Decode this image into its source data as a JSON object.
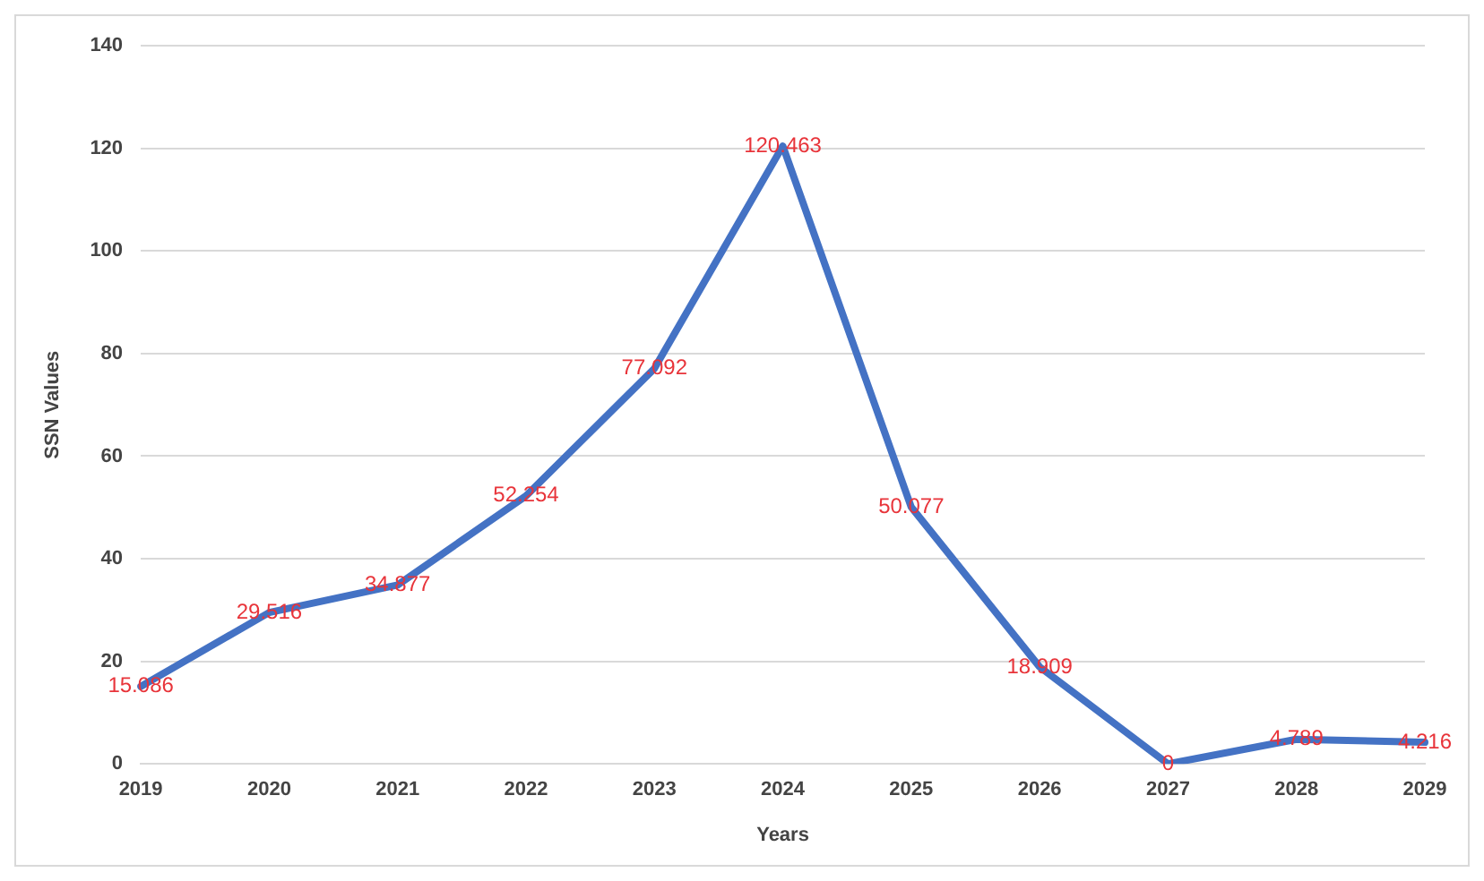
{
  "chart_data": {
    "type": "line",
    "xlabel": "Years",
    "ylabel": "SSN Values",
    "categories": [
      "2019",
      "2020",
      "2021",
      "2022",
      "2023",
      "2024",
      "2025",
      "2026",
      "2027",
      "2028",
      "2029"
    ],
    "series": [
      {
        "color": "#4472c4",
        "values": [
          15.086,
          29.516,
          34.877,
          52.254,
          77.092,
          120.463,
          50.077,
          18.909,
          0,
          4.789,
          4.216
        ]
      }
    ],
    "ylim": [
      0,
      140
    ],
    "yticks": [
      0,
      20,
      40,
      60,
      80,
      100,
      120,
      140
    ],
    "grid": "y",
    "data_labels": true,
    "marker": "none",
    "line_style": "solid",
    "legend": false
  }
}
